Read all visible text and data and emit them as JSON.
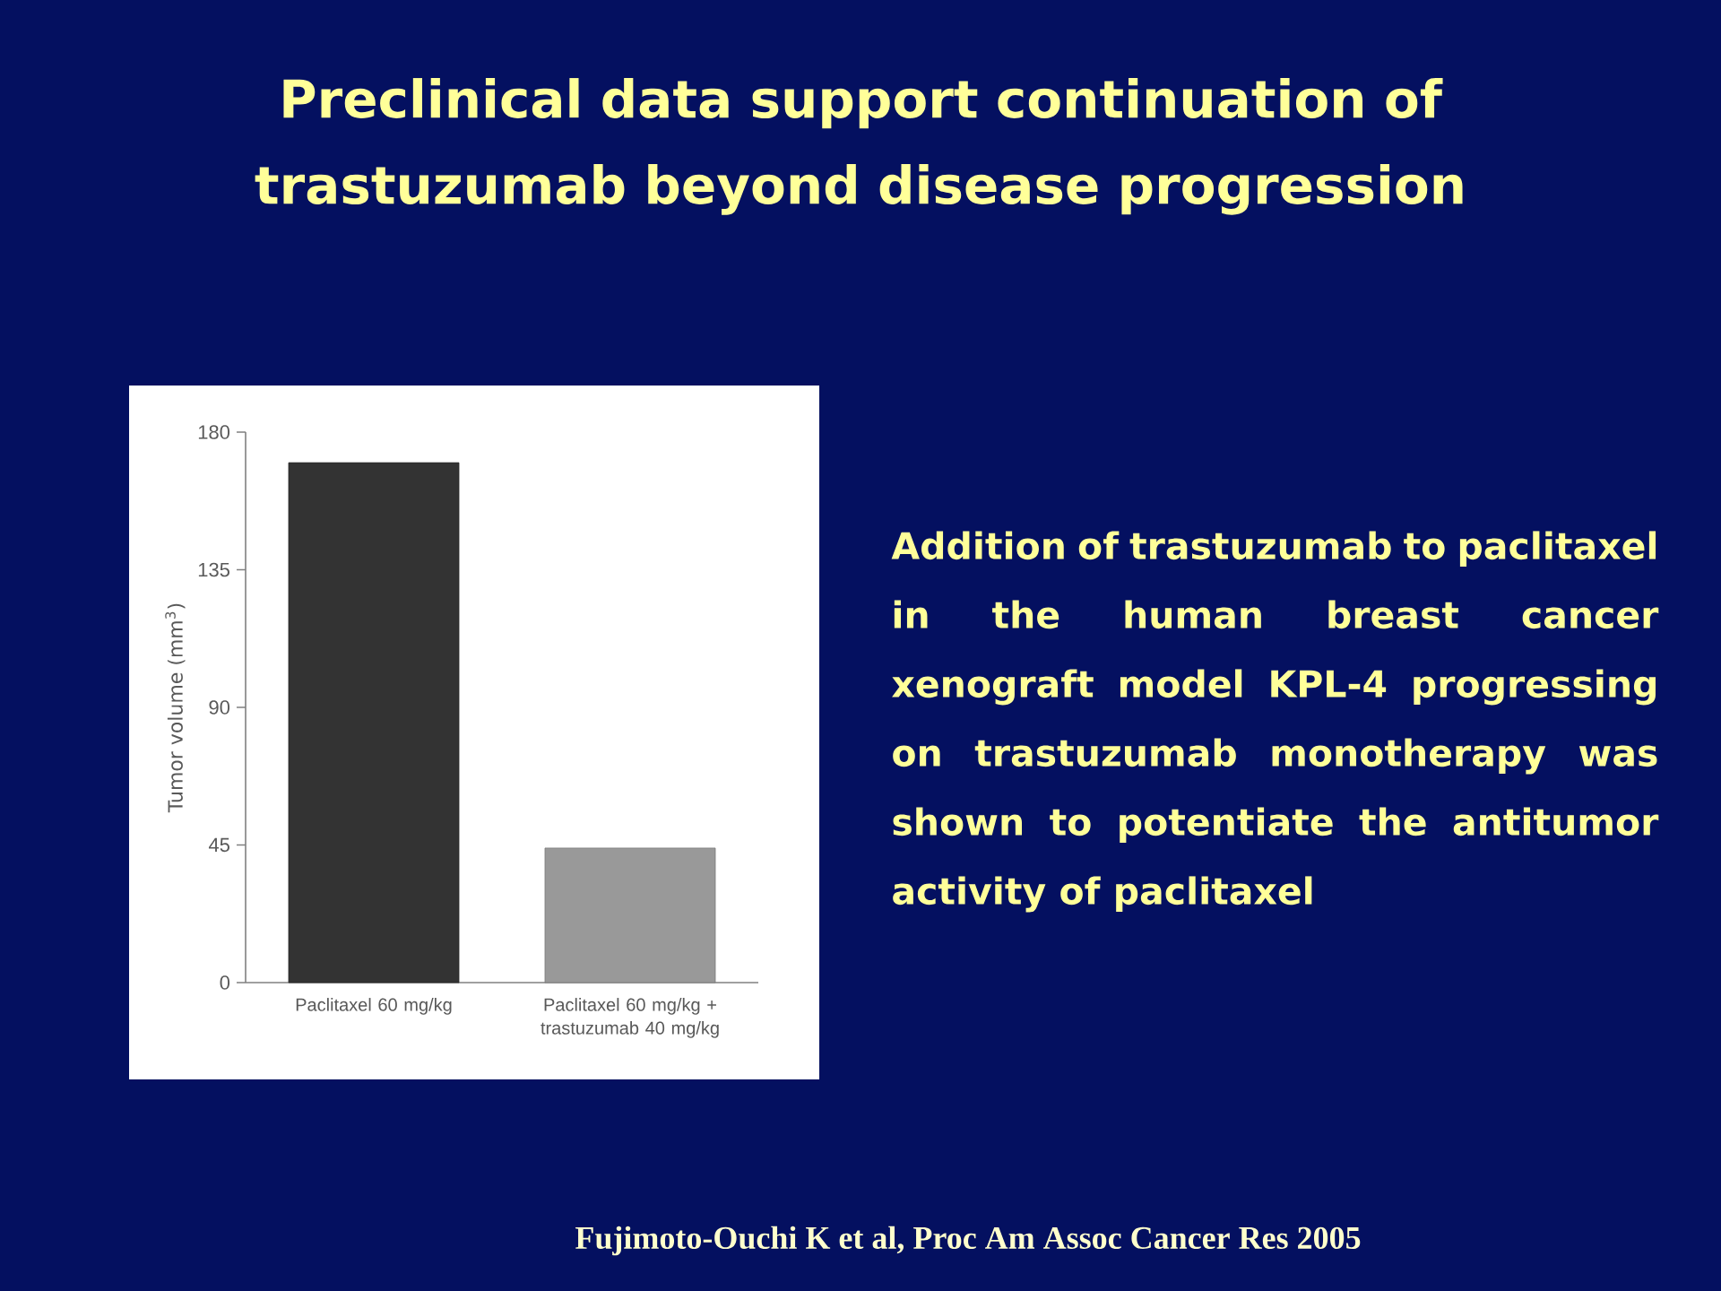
{
  "chart_data": {
    "type": "bar",
    "title": "Preclinical data support continuation of trastuzumab beyond disease progression",
    "categories": [
      "Paclitaxel 60 mg/kg",
      "Paclitaxel 60 mg/kg + trastuzumab 40 mg/kg"
    ],
    "values": [
      170,
      44
    ],
    "colors": [
      "#333333",
      "#999999"
    ],
    "ylabel": "Tumor volume (mm$^{3}$)",
    "ylim": [
      0,
      180
    ],
    "yticks": [
      0,
      45,
      90,
      135,
      180
    ],
    "annotations": [
      "Addition of trastuzumab to paclitaxel in the human breast cancer xenograft model KPL-4 progressing on trastuzumab monotherapy was shown to potentiate the antitumor activity of paclitaxel",
      "Fujimoto-Ouchi K et al, Proc Am Assoc Cancer Res 2005"
    ]
  }
}
